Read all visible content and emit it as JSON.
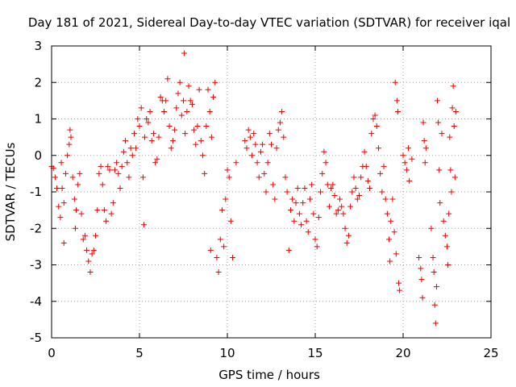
{
  "chart_data": {
    "type": "scatter",
    "title": "Day 181 of 2021, Sidereal Day-to-day VTEC variation (SDTVAR) for receiver iqal",
    "xlabel": "GPS time / hours",
    "ylabel": "SDTVAR / TECUs",
    "xlim": [
      0,
      25
    ],
    "ylim": [
      -5,
      3
    ],
    "xticks": [
      0,
      5,
      10,
      15,
      20,
      25
    ],
    "yticks": [
      -5,
      -4,
      -3,
      -2,
      -1,
      0,
      1,
      2,
      3
    ],
    "grid": true,
    "marker": "plus",
    "color": "#ee0000",
    "series": [
      {
        "name": "SDTVAR",
        "points": [
          [
            0.0,
            -0.3
          ],
          [
            0.1,
            -0.35
          ],
          [
            0.2,
            -0.6
          ],
          [
            0.3,
            -0.9
          ],
          [
            0.4,
            -1.4
          ],
          [
            0.5,
            -1.7
          ],
          [
            0.55,
            -0.2
          ],
          [
            0.6,
            -0.9
          ],
          [
            0.7,
            -1.3
          ],
          [
            0.7,
            -2.4
          ],
          [
            0.8,
            -0.5
          ],
          [
            0.9,
            0.0
          ],
          [
            1.0,
            0.3
          ],
          [
            1.05,
            0.7
          ],
          [
            1.1,
            0.5
          ],
          [
            1.2,
            -0.6
          ],
          [
            1.3,
            -1.2
          ],
          [
            1.35,
            -2.0
          ],
          [
            1.4,
            -1.5
          ],
          [
            1.5,
            -0.8
          ],
          [
            1.6,
            -0.5
          ],
          [
            1.7,
            -1.6
          ],
          [
            1.8,
            -2.3
          ],
          [
            1.9,
            -2.2
          ],
          [
            2.0,
            -2.6
          ],
          [
            2.1,
            -2.9
          ],
          [
            2.2,
            -3.2
          ],
          [
            2.3,
            -2.7
          ],
          [
            2.4,
            -2.6
          ],
          [
            2.5,
            -2.2
          ],
          [
            2.6,
            -1.5
          ],
          [
            2.7,
            -0.5
          ],
          [
            2.8,
            -0.3
          ],
          [
            2.9,
            -0.8
          ],
          [
            3.0,
            -1.5
          ],
          [
            3.1,
            -1.8
          ],
          [
            3.2,
            -0.3
          ],
          [
            3.3,
            -0.4
          ],
          [
            3.4,
            -1.6
          ],
          [
            3.5,
            -1.3
          ],
          [
            3.6,
            -0.4
          ],
          [
            3.7,
            -0.2
          ],
          [
            3.8,
            -0.5
          ],
          [
            3.9,
            -0.9
          ],
          [
            4.0,
            -0.3
          ],
          [
            4.1,
            0.1
          ],
          [
            4.2,
            0.4
          ],
          [
            4.3,
            -0.2
          ],
          [
            4.4,
            -0.6
          ],
          [
            4.5,
            0.2
          ],
          [
            4.6,
            0.0
          ],
          [
            4.7,
            0.6
          ],
          [
            4.8,
            0.2
          ],
          [
            4.9,
            1.0
          ],
          [
            5.0,
            0.8
          ],
          [
            5.1,
            1.3
          ],
          [
            5.2,
            -0.6
          ],
          [
            5.25,
            -1.9
          ],
          [
            5.3,
            0.5
          ],
          [
            5.4,
            1.0
          ],
          [
            5.5,
            0.9
          ],
          [
            5.6,
            1.2
          ],
          [
            5.7,
            0.4
          ],
          [
            5.8,
            0.6
          ],
          [
            5.9,
            -0.2
          ],
          [
            6.0,
            -0.1
          ],
          [
            6.1,
            0.5
          ],
          [
            6.2,
            1.6
          ],
          [
            6.3,
            1.5
          ],
          [
            6.4,
            1.2
          ],
          [
            6.5,
            1.5
          ],
          [
            6.6,
            2.1
          ],
          [
            6.7,
            0.8
          ],
          [
            6.8,
            0.2
          ],
          [
            6.9,
            0.4
          ],
          [
            7.0,
            0.7
          ],
          [
            7.1,
            1.3
          ],
          [
            7.2,
            1.7
          ],
          [
            7.3,
            2.0
          ],
          [
            7.4,
            1.1
          ],
          [
            7.5,
            1.5
          ],
          [
            7.55,
            2.8
          ],
          [
            7.6,
            0.6
          ],
          [
            7.7,
            1.2
          ],
          [
            7.8,
            1.9
          ],
          [
            7.9,
            1.5
          ],
          [
            8.0,
            1.4
          ],
          [
            8.1,
            0.7
          ],
          [
            8.2,
            0.3
          ],
          [
            8.3,
            0.8
          ],
          [
            8.4,
            1.8
          ],
          [
            8.5,
            0.4
          ],
          [
            8.6,
            0.0
          ],
          [
            8.7,
            -0.5
          ],
          [
            8.8,
            0.8
          ],
          [
            8.9,
            1.8
          ],
          [
            9.0,
            1.2
          ],
          [
            9.05,
            -2.6
          ],
          [
            9.1,
            0.5
          ],
          [
            9.2,
            1.6
          ],
          [
            9.3,
            2.0
          ],
          [
            9.4,
            -2.8
          ],
          [
            9.5,
            -3.2
          ],
          [
            9.6,
            -2.3
          ],
          [
            9.7,
            -1.5
          ],
          [
            9.8,
            -2.5
          ],
          [
            9.9,
            -1.2
          ],
          [
            10.0,
            -0.4
          ],
          [
            10.1,
            -0.6
          ],
          [
            10.2,
            -1.8
          ],
          [
            10.3,
            -2.8
          ],
          [
            10.5,
            -0.2
          ],
          [
            11.0,
            0.4
          ],
          [
            11.1,
            0.2
          ],
          [
            11.2,
            0.7
          ],
          [
            11.3,
            0.5
          ],
          [
            11.4,
            0.0
          ],
          [
            11.5,
            0.6
          ],
          [
            11.6,
            0.3
          ],
          [
            11.7,
            -0.2
          ],
          [
            11.8,
            -0.6
          ],
          [
            11.9,
            0.1
          ],
          [
            12.0,
            0.3
          ],
          [
            12.1,
            -0.5
          ],
          [
            12.2,
            -1.0
          ],
          [
            12.3,
            -0.2
          ],
          [
            12.4,
            0.6
          ],
          [
            12.5,
            0.3
          ],
          [
            12.6,
            -0.8
          ],
          [
            12.7,
            -1.2
          ],
          [
            12.8,
            0.2
          ],
          [
            12.9,
            0.7
          ],
          [
            13.0,
            0.9
          ],
          [
            13.1,
            1.2
          ],
          [
            13.2,
            0.5
          ],
          [
            13.3,
            -0.6
          ],
          [
            13.4,
            -1.0
          ],
          [
            13.5,
            -2.6
          ],
          [
            13.6,
            -1.5
          ],
          [
            13.7,
            -1.2
          ],
          [
            13.8,
            -1.8
          ],
          [
            13.9,
            -1.3
          ],
          [
            14.0,
            -0.9
          ],
          [
            14.1,
            -1.6
          ],
          [
            14.2,
            -1.9
          ],
          [
            14.3,
            -1.3
          ],
          [
            14.4,
            -0.9
          ],
          [
            14.5,
            -1.8
          ],
          [
            14.6,
            -2.1
          ],
          [
            14.7,
            -1.2
          ],
          [
            14.8,
            -0.8
          ],
          [
            14.9,
            -1.6
          ],
          [
            15.0,
            -2.3
          ],
          [
            15.1,
            -2.5
          ],
          [
            15.2,
            -1.7
          ],
          [
            15.3,
            -1.0
          ],
          [
            15.4,
            -0.5
          ],
          [
            15.5,
            0.1
          ],
          [
            15.6,
            -0.2
          ],
          [
            15.7,
            -0.8
          ],
          [
            15.8,
            -1.4
          ],
          [
            15.9,
            -0.9
          ],
          [
            16.0,
            -0.8
          ],
          [
            16.1,
            -1.1
          ],
          [
            16.2,
            -1.6
          ],
          [
            16.3,
            -1.5
          ],
          [
            16.4,
            -1.2
          ],
          [
            16.5,
            -1.4
          ],
          [
            16.6,
            -1.6
          ],
          [
            16.7,
            -2.0
          ],
          [
            16.8,
            -2.4
          ],
          [
            16.9,
            -2.2
          ],
          [
            17.0,
            -1.4
          ],
          [
            17.1,
            -1.0
          ],
          [
            17.2,
            -0.6
          ],
          [
            17.3,
            -0.9
          ],
          [
            17.4,
            -1.2
          ],
          [
            17.5,
            -1.1
          ],
          [
            17.6,
            -0.6
          ],
          [
            17.7,
            -0.3
          ],
          [
            17.8,
            0.1
          ],
          [
            17.9,
            -0.3
          ],
          [
            18.0,
            -0.7
          ],
          [
            18.1,
            -0.9
          ],
          [
            18.2,
            0.6
          ],
          [
            18.3,
            1.0
          ],
          [
            18.4,
            1.1
          ],
          [
            18.5,
            0.8
          ],
          [
            18.6,
            0.2
          ],
          [
            18.7,
            -0.5
          ],
          [
            18.8,
            -1.0
          ],
          [
            18.9,
            -0.3
          ],
          [
            19.0,
            -1.2
          ],
          [
            19.1,
            -1.6
          ],
          [
            19.2,
            -2.3
          ],
          [
            19.25,
            -2.9
          ],
          [
            19.3,
            -1.8
          ],
          [
            19.4,
            -1.2
          ],
          [
            19.5,
            -2.1
          ],
          [
            19.55,
            2.0
          ],
          [
            19.6,
            -2.7
          ],
          [
            19.65,
            1.5
          ],
          [
            19.7,
            1.2
          ],
          [
            19.75,
            -3.5
          ],
          [
            19.8,
            -3.7
          ],
          [
            20.0,
            0.0
          ],
          [
            20.1,
            -0.2
          ],
          [
            20.2,
            -0.4
          ],
          [
            20.3,
            0.2
          ],
          [
            20.35,
            -0.7
          ],
          [
            20.5,
            -0.1
          ],
          [
            20.9,
            -2.8
          ],
          [
            21.0,
            -3.1
          ],
          [
            21.05,
            -3.4
          ],
          [
            21.1,
            -3.9
          ],
          [
            21.15,
            0.9
          ],
          [
            21.2,
            0.4
          ],
          [
            21.25,
            -0.2
          ],
          [
            21.3,
            0.2
          ],
          [
            21.6,
            -2.0
          ],
          [
            21.7,
            -2.8
          ],
          [
            21.75,
            -3.2
          ],
          [
            21.8,
            -4.1
          ],
          [
            21.85,
            -4.6
          ],
          [
            21.9,
            -3.6
          ],
          [
            21.95,
            1.5
          ],
          [
            22.0,
            0.9
          ],
          [
            22.05,
            -0.4
          ],
          [
            22.1,
            -1.3
          ],
          [
            22.2,
            0.6
          ],
          [
            22.3,
            -1.8
          ],
          [
            22.4,
            -2.2
          ],
          [
            22.5,
            -2.5
          ],
          [
            22.55,
            -3.0
          ],
          [
            22.6,
            -1.6
          ],
          [
            22.65,
            0.5
          ],
          [
            22.7,
            -0.4
          ],
          [
            22.75,
            -1.0
          ],
          [
            22.8,
            1.3
          ],
          [
            22.85,
            1.9
          ],
          [
            22.9,
            0.8
          ],
          [
            22.95,
            -0.6
          ],
          [
            23.0,
            1.2
          ]
        ]
      }
    ]
  }
}
